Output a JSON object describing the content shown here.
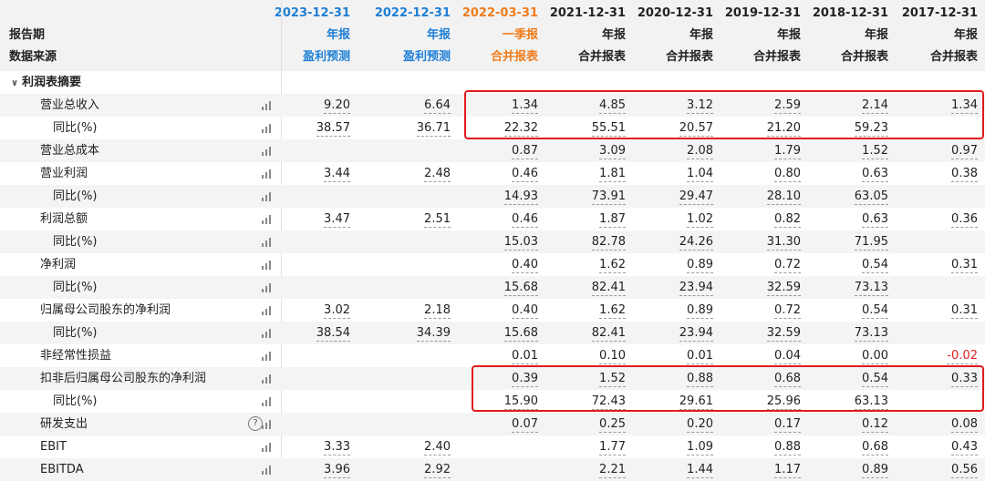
{
  "header": {
    "dates": [
      "2023-12-31",
      "2022-12-31",
      "2022-03-31",
      "2021-12-31",
      "2020-12-31",
      "2019-12-31",
      "2018-12-31",
      "2017-12-31"
    ],
    "report_period_label": "报告期",
    "data_source_label": "数据来源",
    "periods": [
      "年报",
      "年报",
      "一季报",
      "年报",
      "年报",
      "年报",
      "年报",
      "年报"
    ],
    "sources": [
      "盈利预测",
      "盈利预测",
      "合并报表",
      "合并报表",
      "合并报表",
      "合并报表",
      "合并报表",
      "合并报表"
    ],
    "colors": [
      "blue",
      "blue",
      "orange",
      "dark",
      "dark",
      "dark",
      "dark",
      "dark"
    ]
  },
  "section": {
    "label": "利润表摘要",
    "caret": "∨"
  },
  "rows": [
    {
      "label": "营业总收入",
      "indent": 1,
      "values": [
        "9.20",
        "6.64",
        "1.34",
        "4.85",
        "3.12",
        "2.59",
        "2.14",
        "1.34"
      ]
    },
    {
      "label": "同比(%)",
      "indent": 2,
      "values": [
        "38.57",
        "36.71",
        "22.32",
        "55.51",
        "20.57",
        "21.20",
        "59.23",
        ""
      ]
    },
    {
      "label": "营业总成本",
      "indent": 1,
      "values": [
        "",
        "",
        "0.87",
        "3.09",
        "2.08",
        "1.79",
        "1.52",
        "0.97"
      ]
    },
    {
      "label": "营业利润",
      "indent": 1,
      "values": [
        "3.44",
        "2.48",
        "0.46",
        "1.81",
        "1.04",
        "0.80",
        "0.63",
        "0.38"
      ]
    },
    {
      "label": "同比(%)",
      "indent": 2,
      "values": [
        "",
        "",
        "14.93",
        "73.91",
        "29.47",
        "28.10",
        "63.05",
        ""
      ]
    },
    {
      "label": "利润总额",
      "indent": 1,
      "values": [
        "3.47",
        "2.51",
        "0.46",
        "1.87",
        "1.02",
        "0.82",
        "0.63",
        "0.36"
      ]
    },
    {
      "label": "同比(%)",
      "indent": 2,
      "values": [
        "",
        "",
        "15.03",
        "82.78",
        "24.26",
        "31.30",
        "71.95",
        ""
      ]
    },
    {
      "label": "净利润",
      "indent": 1,
      "values": [
        "",
        "",
        "0.40",
        "1.62",
        "0.89",
        "0.72",
        "0.54",
        "0.31"
      ]
    },
    {
      "label": "同比(%)",
      "indent": 2,
      "values": [
        "",
        "",
        "15.68",
        "82.41",
        "23.94",
        "32.59",
        "73.13",
        ""
      ]
    },
    {
      "label": "归属母公司股东的净利润",
      "indent": 1,
      "values": [
        "3.02",
        "2.18",
        "0.40",
        "1.62",
        "0.89",
        "0.72",
        "0.54",
        "0.31"
      ]
    },
    {
      "label": "同比(%)",
      "indent": 2,
      "values": [
        "38.54",
        "34.39",
        "15.68",
        "82.41",
        "23.94",
        "32.59",
        "73.13",
        ""
      ]
    },
    {
      "label": "非经常性损益",
      "indent": 1,
      "values": [
        "",
        "",
        "0.01",
        "0.10",
        "0.01",
        "0.04",
        "0.00",
        "-0.02"
      ]
    },
    {
      "label": "扣非后归属母公司股东的净利润",
      "indent": 1,
      "values": [
        "",
        "",
        "0.39",
        "1.52",
        "0.88",
        "0.68",
        "0.54",
        "0.33"
      ]
    },
    {
      "label": "同比(%)",
      "indent": 2,
      "values": [
        "",
        "",
        "15.90",
        "72.43",
        "29.61",
        "25.96",
        "63.13",
        ""
      ]
    },
    {
      "label": "研发支出",
      "indent": 1,
      "help": "?",
      "values": [
        "",
        "",
        "0.07",
        "0.25",
        "0.20",
        "0.17",
        "0.12",
        "0.08"
      ]
    },
    {
      "label": "EBIT",
      "indent": 1,
      "values": [
        "3.33",
        "2.40",
        "",
        "1.77",
        "1.09",
        "0.88",
        "0.68",
        "0.43"
      ]
    },
    {
      "label": "EBITDA",
      "indent": 1,
      "values": [
        "3.96",
        "2.92",
        "",
        "2.21",
        "1.44",
        "1.17",
        "0.89",
        "0.56"
      ]
    }
  ]
}
